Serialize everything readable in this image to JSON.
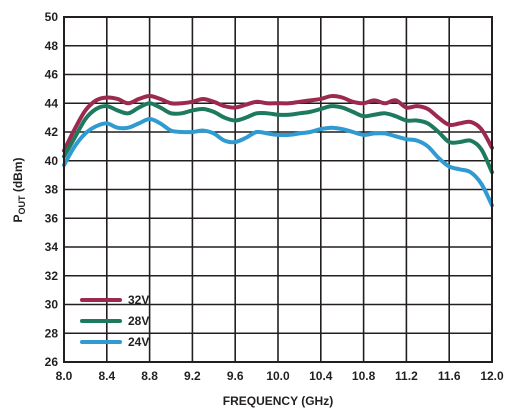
{
  "chart_data": {
    "type": "line",
    "ylabel_main": "P",
    "ylabel_sub": "OUT",
    "ylabel_unit": " (dBm)",
    "xlabel": "FREQUENCY (GHz)",
    "xlim": [
      8.0,
      12.0
    ],
    "ylim": [
      26,
      50
    ],
    "grid": true,
    "legend_position": "bottom-left",
    "x_ticks": [
      8.0,
      8.4,
      8.8,
      9.2,
      9.6,
      10.0,
      10.4,
      10.8,
      11.2,
      11.6,
      12.0
    ],
    "y_ticks": [
      26,
      28,
      30,
      32,
      34,
      36,
      38,
      40,
      42,
      44,
      46,
      48,
      50
    ],
    "x_tick_labels": [
      "8.0",
      "8.4",
      "8.8",
      "9.2",
      "9.6",
      "10.0",
      "10.4",
      "10.8",
      "11.2",
      "11.6",
      "12.0"
    ],
    "y_tick_labels": [
      "26",
      "28",
      "30",
      "32",
      "34",
      "36",
      "38",
      "40",
      "42",
      "44",
      "46",
      "48",
      "50"
    ],
    "series": [
      {
        "name": "32V",
        "color": "#9b2a4e",
        "x": [
          8.0,
          8.1,
          8.2,
          8.3,
          8.4,
          8.5,
          8.6,
          8.7,
          8.8,
          8.9,
          9.0,
          9.1,
          9.2,
          9.3,
          9.4,
          9.5,
          9.6,
          9.7,
          9.8,
          9.9,
          10.0,
          10.1,
          10.2,
          10.3,
          10.4,
          10.5,
          10.6,
          10.7,
          10.8,
          10.9,
          11.0,
          11.1,
          11.2,
          11.3,
          11.4,
          11.5,
          11.6,
          11.7,
          11.8,
          11.9,
          12.0
        ],
        "y": [
          40.7,
          42.2,
          43.5,
          44.2,
          44.4,
          44.3,
          44.0,
          44.3,
          44.5,
          44.3,
          44.0,
          44.0,
          44.1,
          44.3,
          44.1,
          43.8,
          43.7,
          43.9,
          44.1,
          44.0,
          44.0,
          44.0,
          44.1,
          44.2,
          44.3,
          44.5,
          44.4,
          44.1,
          44.0,
          44.2,
          44.0,
          44.2,
          43.7,
          43.8,
          43.6,
          43.0,
          42.5,
          42.6,
          42.7,
          42.2,
          40.9
        ]
      },
      {
        "name": "28V",
        "color": "#1e7a5e",
        "x": [
          8.0,
          8.1,
          8.2,
          8.3,
          8.4,
          8.5,
          8.6,
          8.7,
          8.8,
          8.9,
          9.0,
          9.1,
          9.2,
          9.3,
          9.4,
          9.5,
          9.6,
          9.7,
          9.8,
          9.9,
          10.0,
          10.1,
          10.2,
          10.3,
          10.4,
          10.5,
          10.6,
          10.7,
          10.8,
          10.9,
          11.0,
          11.1,
          11.2,
          11.3,
          11.4,
          11.5,
          11.6,
          11.7,
          11.8,
          11.9,
          12.0
        ],
        "y": [
          40.3,
          41.6,
          42.9,
          43.6,
          43.8,
          43.5,
          43.3,
          43.7,
          44.0,
          43.7,
          43.3,
          43.3,
          43.5,
          43.6,
          43.4,
          43.0,
          42.8,
          43.0,
          43.3,
          43.3,
          43.2,
          43.2,
          43.3,
          43.4,
          43.6,
          43.8,
          43.7,
          43.4,
          43.1,
          43.2,
          43.3,
          43.1,
          42.8,
          42.8,
          42.6,
          42.0,
          41.3,
          41.3,
          41.4,
          40.8,
          39.2
        ]
      },
      {
        "name": "24V",
        "color": "#2f9bd1",
        "x": [
          8.0,
          8.1,
          8.2,
          8.3,
          8.4,
          8.5,
          8.6,
          8.7,
          8.8,
          8.9,
          9.0,
          9.1,
          9.2,
          9.3,
          9.4,
          9.5,
          9.6,
          9.7,
          9.8,
          9.9,
          10.0,
          10.1,
          10.2,
          10.3,
          10.4,
          10.5,
          10.6,
          10.7,
          10.8,
          10.9,
          11.0,
          11.1,
          11.2,
          11.3,
          11.4,
          11.5,
          11.6,
          11.7,
          11.8,
          11.9,
          12.0
        ],
        "y": [
          39.7,
          41.0,
          41.9,
          42.4,
          42.6,
          42.3,
          42.3,
          42.6,
          42.9,
          42.6,
          42.1,
          42.0,
          42.0,
          42.1,
          41.9,
          41.4,
          41.3,
          41.6,
          42.0,
          41.9,
          41.8,
          41.8,
          41.9,
          42.0,
          42.2,
          42.3,
          42.2,
          42.0,
          41.8,
          41.9,
          41.9,
          41.7,
          41.5,
          41.4,
          41.0,
          40.2,
          39.6,
          39.4,
          39.2,
          38.4,
          36.9
        ]
      }
    ]
  }
}
